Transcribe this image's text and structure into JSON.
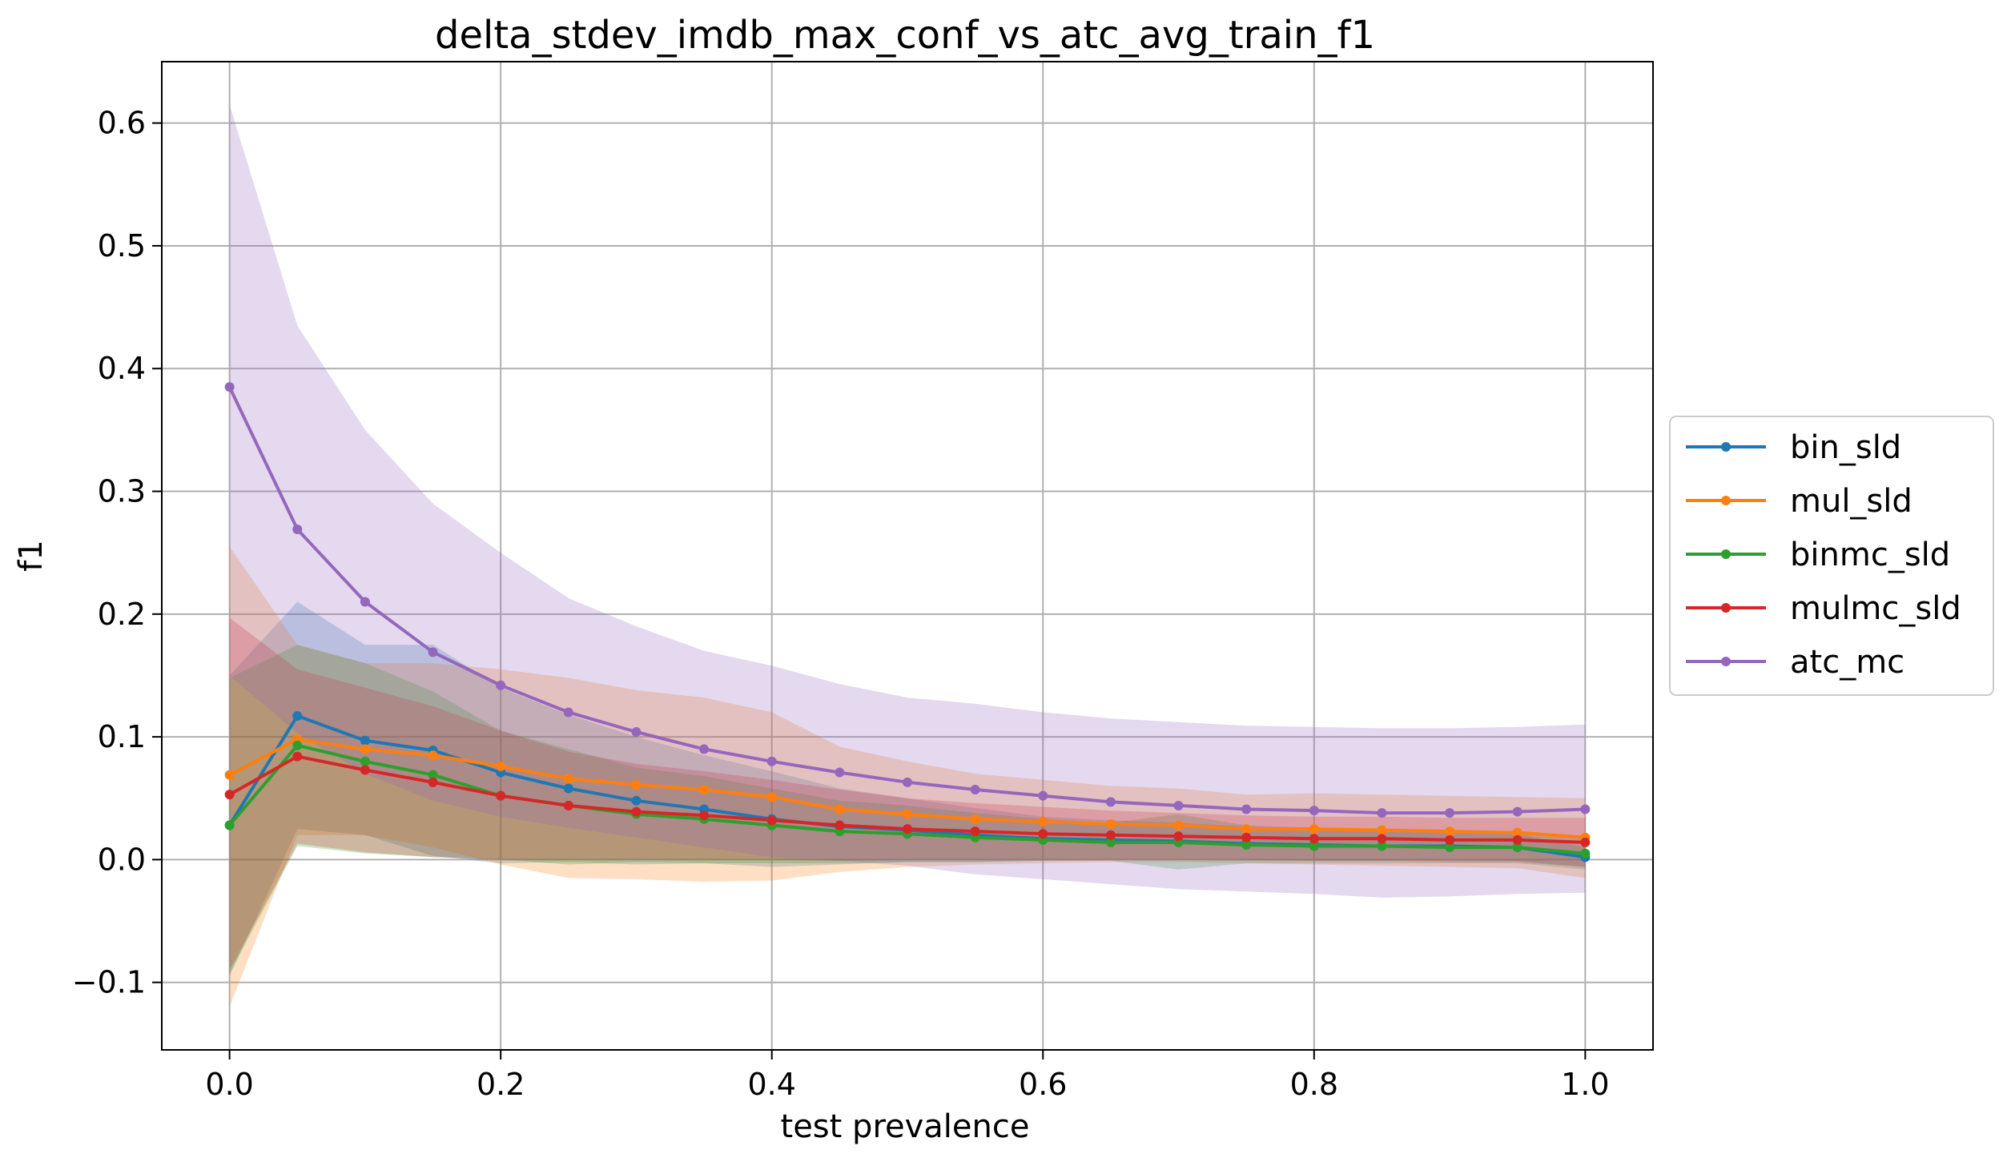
{
  "chart_data": {
    "type": "line",
    "title": "delta_stdev_imdb_max_conf_vs_atc_avg_train_f1",
    "xlabel": "test prevalence",
    "ylabel": "f1",
    "xlim": [
      -0.05,
      1.05
    ],
    "ylim": [
      -0.155,
      0.65
    ],
    "xticks": [
      0.0,
      0.2,
      0.4,
      0.6,
      0.8,
      1.0
    ],
    "xtick_labels": [
      "0.0",
      "0.2",
      "0.4",
      "0.6",
      "0.8",
      "1.0"
    ],
    "yticks": [
      -0.1,
      0.0,
      0.1,
      0.2,
      0.3,
      0.4,
      0.5,
      0.6
    ],
    "ytick_labels": [
      "−0.1",
      "0.0",
      "0.1",
      "0.2",
      "0.3",
      "0.4",
      "0.5",
      "0.6"
    ],
    "grid": true,
    "legend_position": "right-outside",
    "x": [
      0.0,
      0.05,
      0.1,
      0.15,
      0.2,
      0.25,
      0.3,
      0.35,
      0.4,
      0.45,
      0.5,
      0.55,
      0.6,
      0.65,
      0.7,
      0.75,
      0.8,
      0.85,
      0.9,
      0.95,
      1.0
    ],
    "series": [
      {
        "name": "bin_sld",
        "color": "#1f77b4",
        "values": [
          0.028,
          0.117,
          0.097,
          0.089,
          0.071,
          0.058,
          0.048,
          0.041,
          0.033,
          0.027,
          0.024,
          0.02,
          0.017,
          0.016,
          0.015,
          0.013,
          0.012,
          0.011,
          0.011,
          0.01,
          0.002
        ],
        "upper": [
          0.15,
          0.21,
          0.175,
          0.175,
          0.14,
          0.118,
          0.1,
          0.085,
          0.072,
          0.058,
          0.05,
          0.042,
          0.035,
          0.032,
          0.03,
          0.027,
          0.025,
          0.023,
          0.022,
          0.021,
          0.01
        ],
        "lower": [
          -0.095,
          0.025,
          0.02,
          0.003,
          -0.003,
          -0.002,
          -0.004,
          -0.003,
          -0.006,
          -0.004,
          -0.002,
          -0.002,
          -0.001,
          0.0,
          0.0,
          -0.001,
          -0.001,
          -0.001,
          0.0,
          -0.001,
          -0.006
        ]
      },
      {
        "name": "mul_sld",
        "color": "#ff7f0e",
        "values": [
          0.069,
          0.098,
          0.09,
          0.085,
          0.076,
          0.066,
          0.061,
          0.057,
          0.051,
          0.041,
          0.037,
          0.033,
          0.031,
          0.029,
          0.028,
          0.025,
          0.025,
          0.024,
          0.023,
          0.022,
          0.018
        ],
        "upper": [
          0.255,
          0.175,
          0.16,
          0.16,
          0.155,
          0.148,
          0.138,
          0.132,
          0.12,
          0.092,
          0.08,
          0.07,
          0.065,
          0.06,
          0.058,
          0.053,
          0.054,
          0.053,
          0.052,
          0.051,
          0.05
        ],
        "lower": [
          -0.12,
          0.02,
          0.02,
          0.01,
          -0.004,
          -0.015,
          -0.016,
          -0.018,
          -0.017,
          -0.01,
          -0.006,
          -0.004,
          -0.003,
          -0.002,
          -0.002,
          -0.003,
          -0.004,
          -0.005,
          -0.006,
          -0.007,
          -0.015
        ]
      },
      {
        "name": "binmc_sld",
        "color": "#2ca02c",
        "values": [
          0.028,
          0.093,
          0.08,
          0.069,
          0.052,
          0.044,
          0.037,
          0.033,
          0.028,
          0.023,
          0.021,
          0.018,
          0.016,
          0.014,
          0.014,
          0.012,
          0.011,
          0.011,
          0.01,
          0.01,
          0.005
        ],
        "upper": [
          0.148,
          0.175,
          0.16,
          0.137,
          0.105,
          0.09,
          0.075,
          0.068,
          0.058,
          0.048,
          0.044,
          0.038,
          0.033,
          0.03,
          0.037,
          0.028,
          0.026,
          0.025,
          0.024,
          0.022,
          0.018
        ],
        "lower": [
          -0.093,
          0.011,
          0.005,
          0.002,
          0.0,
          -0.004,
          -0.002,
          -0.003,
          -0.003,
          -0.003,
          -0.002,
          -0.002,
          -0.001,
          -0.001,
          -0.008,
          -0.003,
          -0.003,
          -0.003,
          -0.003,
          -0.003,
          -0.008
        ]
      },
      {
        "name": "mulmc_sld",
        "color": "#d62728",
        "values": [
          0.053,
          0.084,
          0.073,
          0.063,
          0.052,
          0.044,
          0.039,
          0.036,
          0.032,
          0.028,
          0.025,
          0.023,
          0.021,
          0.02,
          0.019,
          0.018,
          0.017,
          0.017,
          0.016,
          0.016,
          0.014
        ],
        "upper": [
          0.197,
          0.155,
          0.14,
          0.125,
          0.105,
          0.088,
          0.078,
          0.072,
          0.065,
          0.057,
          0.05,
          0.046,
          0.043,
          0.04,
          0.038,
          0.036,
          0.035,
          0.035,
          0.034,
          0.034,
          0.034
        ],
        "lower": [
          -0.09,
          0.013,
          0.006,
          0.002,
          0.0,
          0.0,
          0.0,
          0.0,
          0.0,
          -0.001,
          0.0,
          0.0,
          0.0,
          0.0,
          0.0,
          0.0,
          -0.001,
          -0.001,
          -0.002,
          -0.002,
          -0.006
        ]
      },
      {
        "name": "atc_mc",
        "color": "#9467bd",
        "values": [
          0.385,
          0.269,
          0.21,
          0.169,
          0.142,
          0.12,
          0.104,
          0.09,
          0.08,
          0.071,
          0.063,
          0.057,
          0.052,
          0.047,
          0.044,
          0.041,
          0.04,
          0.038,
          0.038,
          0.039,
          0.041
        ],
        "upper": [
          0.615,
          0.435,
          0.35,
          0.29,
          0.25,
          0.213,
          0.19,
          0.17,
          0.158,
          0.143,
          0.132,
          0.127,
          0.12,
          0.115,
          0.112,
          0.109,
          0.108,
          0.107,
          0.107,
          0.108,
          0.11
        ],
        "lower": [
          0.15,
          0.103,
          0.07,
          0.048,
          0.035,
          0.026,
          0.018,
          0.01,
          0.002,
          -0.001,
          -0.005,
          -0.012,
          -0.016,
          -0.02,
          -0.024,
          -0.026,
          -0.028,
          -0.031,
          -0.03,
          -0.028,
          -0.027
        ]
      }
    ]
  }
}
